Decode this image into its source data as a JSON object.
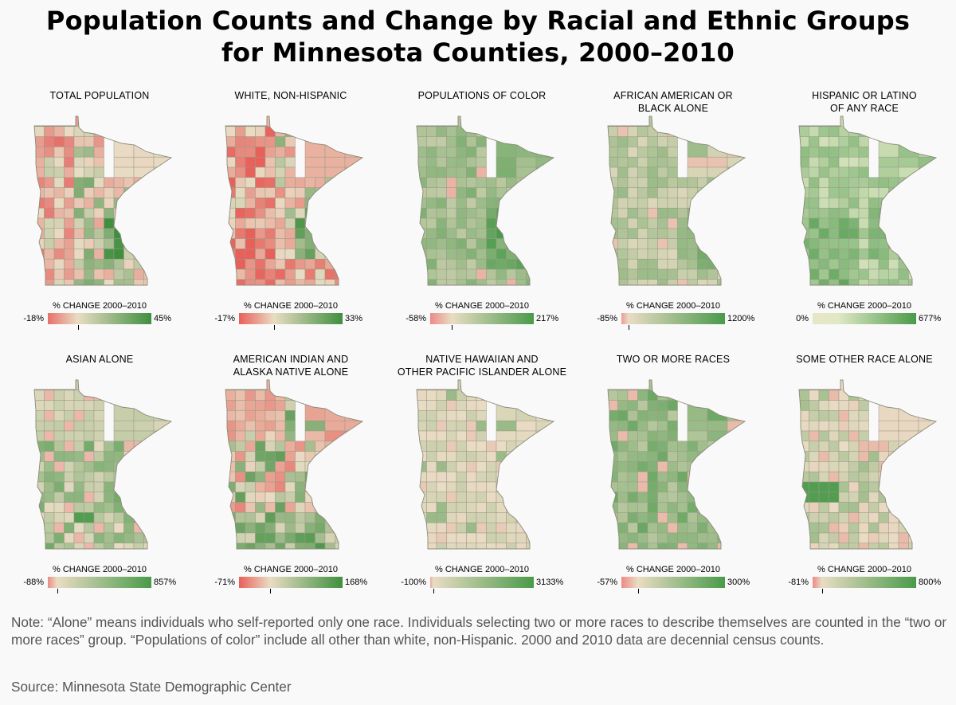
{
  "title": {
    "line1": "Population Counts and Change by Racial and Ethnic Groups",
    "line2": "for Minnesota Counties, 2000–2010"
  },
  "legend_title": "% CHANGE 2000–2010",
  "panels": [
    {
      "title1": "TOTAL POPULATION",
      "title2": "",
      "legend_title": "% CHANGE 2000–2010",
      "min": "-18%",
      "max": "45%",
      "zero_pos": 0.29,
      "colors": {
        "neg": "#e8706a",
        "mid": "#e9dcc4",
        "pos": "#3f8f3f"
      },
      "scheme": "total"
    },
    {
      "title1": "WHITE, NON-HISPANIC",
      "title2": "",
      "legend_title": "% CHANGE 2000–2010",
      "min": "-17%",
      "max": "33%",
      "zero_pos": 0.34,
      "colors": {
        "neg": "#e8605a",
        "mid": "#e9dcc4",
        "pos": "#3f8f3f"
      },
      "scheme": "white"
    },
    {
      "title1": "POPULATIONS OF COLOR",
      "title2": "",
      "legend_title": "% CHANGE 2000–2010",
      "min": "-58%",
      "max": "217%",
      "zero_pos": 0.21,
      "colors": {
        "neg": "#ec8a86",
        "mid": "#e9dcc4",
        "pos": "#4a9a4a"
      },
      "scheme": "color"
    },
    {
      "title1": "AFRICAN AMERICAN OR",
      "title2": "BLACK ALONE",
      "legend_title": "% CHANGE 2000–2010",
      "min": "-85%",
      "max": "1200%",
      "zero_pos": 0.07,
      "colors": {
        "neg": "#ec9a94",
        "mid": "#e9dcc4",
        "pos": "#4a9a4a"
      },
      "scheme": "black"
    },
    {
      "title1": "HISPANIC OR LATINO",
      "title2": "OF ANY RACE",
      "legend_title": "% CHANGE 2000–2010",
      "min": "0%",
      "max": "677%",
      "zero_pos": 0.0,
      "colors": {
        "neg": "#e9e6c8",
        "mid": "#e0e8c4",
        "pos": "#4a9a4a"
      },
      "scheme": "hispanic"
    },
    {
      "title1": "ASIAN ALONE",
      "title2": "",
      "legend_title": "% CHANGE 2000–2010",
      "min": "-88%",
      "max": "857%",
      "zero_pos": 0.09,
      "colors": {
        "neg": "#ec8a86",
        "mid": "#e9dcc4",
        "pos": "#4a9a4a"
      },
      "scheme": "asian"
    },
    {
      "title1": "AMERICAN INDIAN AND",
      "title2": "ALASKA NATIVE ALONE",
      "legend_title": "% CHANGE 2000–2010",
      "min": "-71%",
      "max": "168%",
      "zero_pos": 0.3,
      "colors": {
        "neg": "#e8605a",
        "mid": "#e9dcc4",
        "pos": "#3f8f3f"
      },
      "scheme": "indian"
    },
    {
      "title1": "NATIVE HAWAIIAN AND",
      "title2": "OTHER PACIFIC ISLANDER ALONE",
      "legend_title": "% CHANGE 2000–2010",
      "min": "-100%",
      "max": "3133%",
      "zero_pos": 0.03,
      "colors": {
        "neg": "#eaa8a0",
        "mid": "#e9dcc4",
        "pos": "#4a9a4a"
      },
      "scheme": "hawaiian"
    },
    {
      "title1": "TWO OR MORE RACES",
      "title2": "",
      "legend_title": "% CHANGE 2000–2010",
      "min": "-57%",
      "max": "300%",
      "zero_pos": 0.16,
      "colors": {
        "neg": "#ec8a86",
        "mid": "#e9dcc4",
        "pos": "#4a9a4a"
      },
      "scheme": "two"
    },
    {
      "title1": "SOME OTHER RACE ALONE",
      "title2": "",
      "legend_title": "% CHANGE 2000–2010",
      "min": "-81%",
      "max": "800%",
      "zero_pos": 0.09,
      "colors": {
        "neg": "#ec8a86",
        "mid": "#e9dcc4",
        "pos": "#4a9a4a"
      },
      "scheme": "other"
    }
  ],
  "note": "Note: “Alone” means individuals who self-reported only one race. Individuals selecting two or more races to describe themselves are counted in the “two or more races” group. “Populations of color” include all other than white, non-Hispanic. 2000 and 2010 data are decennial census counts.",
  "source": "Source: Minnesota State Demographic Center"
}
